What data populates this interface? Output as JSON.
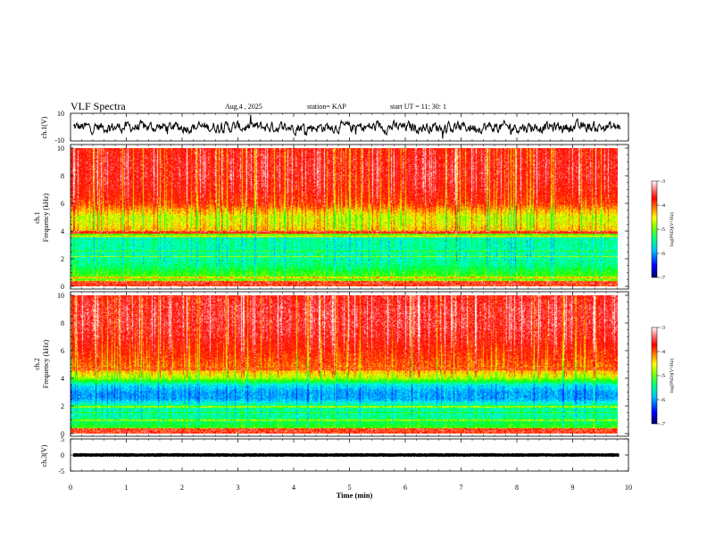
{
  "header": {
    "title": "VLF Spectra",
    "date": "Aug.4  , 2025",
    "station": "station= KAP",
    "start": "start  UT  =   11: 30: 1"
  },
  "colors": {
    "spectrogram": [
      "#000066",
      "#0000ff",
      "#0080ff",
      "#00ffff",
      "#00ff80",
      "#00ff00",
      "#80ff00",
      "#ffff00",
      "#ffa000",
      "#ff2000",
      "#ff0000",
      "#ffffff"
    ],
    "background": "#ffffff",
    "line": "#000000"
  },
  "chart_data": [
    {
      "type": "line",
      "panel": "ch1-waveform",
      "ylabel": "ch.1(V)",
      "ylim": [
        -10,
        10
      ],
      "yticks": [
        "10",
        "-10"
      ],
      "xlim": [
        0,
        10
      ],
      "description_values": {
        "mean_level": 0,
        "amplitude": 3.5
      }
    },
    {
      "type": "heatmap",
      "panel": "ch1-spectrogram",
      "ylabel": "Frequency (kHz)",
      "channel_label": "ch.1",
      "ylim": [
        0,
        10
      ],
      "yticks": [
        "0",
        "2",
        "4",
        "6",
        "8",
        "10"
      ],
      "xlim": [
        0,
        9.83
      ],
      "profile_khz": [
        0,
        0.5,
        1,
        1.5,
        2,
        2.5,
        3,
        3.5,
        4,
        4.5,
        5,
        6,
        7,
        8,
        9,
        10
      ],
      "profile_level": [
        -4.0,
        -4.8,
        -5.0,
        -5.3,
        -5.4,
        -5.4,
        -5.4,
        -5.4,
        -4.2,
        -4.4,
        -4.5,
        -3.8,
        -3.6,
        -3.5,
        -3.5,
        -3.6
      ],
      "colorbar": {
        "min": -7,
        "max": -3,
        "ticks": [
          "-3",
          "-4",
          "-5",
          "-6",
          "-7"
        ],
        "label": "log(PSD)(V²/Hz)"
      }
    },
    {
      "type": "heatmap",
      "panel": "ch2-spectrogram",
      "ylabel": "Frequency (kHz)",
      "channel_label": "ch.2",
      "ylim": [
        0,
        10
      ],
      "yticks": [
        "0",
        "2",
        "4",
        "6",
        "8",
        "10"
      ],
      "xlim": [
        0,
        9.83
      ],
      "profile_khz": [
        0,
        0.5,
        1,
        1.5,
        2,
        2.5,
        3,
        3.5,
        4,
        4.5,
        5,
        6,
        7,
        8,
        9,
        10
      ],
      "profile_level": [
        -4.2,
        -5.0,
        -5.3,
        -5.4,
        -5.3,
        -5.9,
        -5.9,
        -5.6,
        -4.6,
        -4.2,
        -3.9,
        -3.7,
        -3.5,
        -3.4,
        -3.4,
        -3.5
      ],
      "colorbar": {
        "min": -7,
        "max": -3,
        "ticks": [
          "-3",
          "-4",
          "-5",
          "-6",
          "-7"
        ],
        "label": "log(PSD)(V²/Hz)"
      }
    },
    {
      "type": "line",
      "panel": "ch3-waveform",
      "ylabel": "ch.3(V)",
      "ylim": [
        -5,
        5
      ],
      "yticks": [
        "5",
        "0",
        "-5"
      ],
      "xlim": [
        0,
        10
      ],
      "description_values": {
        "mean_level": 0,
        "amplitude": 0.6
      }
    }
  ],
  "xaxis": {
    "label": "Time (min)",
    "ticks": [
      "0",
      "1",
      "2",
      "3",
      "4",
      "5",
      "6",
      "7",
      "8",
      "9",
      "10"
    ],
    "range": [
      0,
      10
    ]
  }
}
